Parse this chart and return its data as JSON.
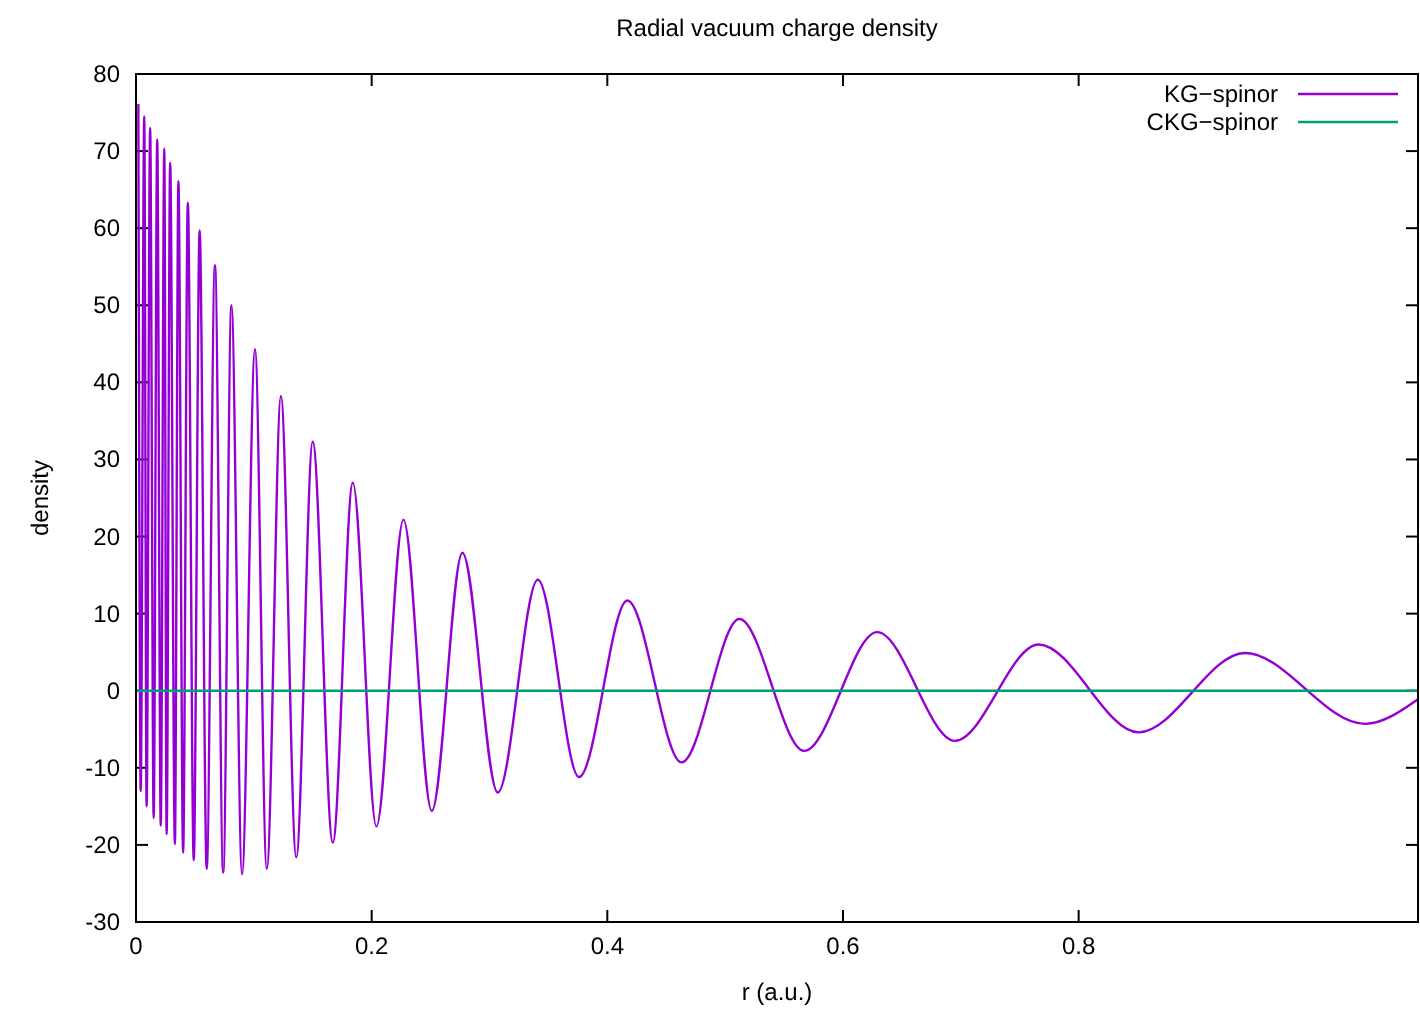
{
  "chart_data": {
    "type": "line",
    "title": "Radial vacuum charge density",
    "xlabel": "r (a.u.)",
    "ylabel": "density",
    "xlim": [
      0,
      1.088
    ],
    "ylim": [
      -30,
      80
    ],
    "xticks": [
      0,
      0.2,
      0.4,
      0.6,
      0.8
    ],
    "yticks": [
      -30,
      -20,
      -10,
      0,
      10,
      20,
      30,
      40,
      50,
      60,
      70,
      80
    ],
    "grid": false,
    "legend": "top right",
    "line_style": "solid",
    "series": [
      {
        "name": "KG−spinor",
        "color": "#9400d3",
        "x": [
          0.002,
          0.004,
          0.007,
          0.009,
          0.012,
          0.015,
          0.018,
          0.021,
          0.024,
          0.026,
          0.029,
          0.033,
          0.036,
          0.04,
          0.044,
          0.049,
          0.054,
          0.06,
          0.067,
          0.074,
          0.081,
          0.09,
          0.101,
          0.111,
          0.123,
          0.136,
          0.15,
          0.167,
          0.184,
          0.204,
          0.227,
          0.251,
          0.277,
          0.307,
          0.341,
          0.376,
          0.417,
          0.463,
          0.512,
          0.567,
          0.629,
          0.695,
          0.766,
          0.851,
          0.941,
          1.043,
          1.088
        ],
        "values": [
          76,
          -13,
          74.5,
          -15,
          73,
          -16.5,
          71.5,
          -17.5,
          70.3,
          -18.6,
          68.5,
          -19.9,
          66.1,
          -21,
          63.3,
          -22,
          59.7,
          -23.1,
          55.2,
          -23.6,
          50.0,
          -23.8,
          44.3,
          -23.1,
          38.2,
          -21.6,
          32.3,
          -19.7,
          27.0,
          -17.6,
          22.2,
          -15.6,
          17.9,
          -13.2,
          14.4,
          -11.2,
          11.7,
          -9.3,
          9.3,
          -7.8,
          7.6,
          -6.5,
          6.0,
          -5.4,
          4.9,
          -4.3,
          -1.1
        ]
      },
      {
        "name": "CKG−spinor",
        "color": "#009e73",
        "x": [
          0,
          1.088
        ],
        "values": [
          0,
          0
        ]
      }
    ]
  }
}
